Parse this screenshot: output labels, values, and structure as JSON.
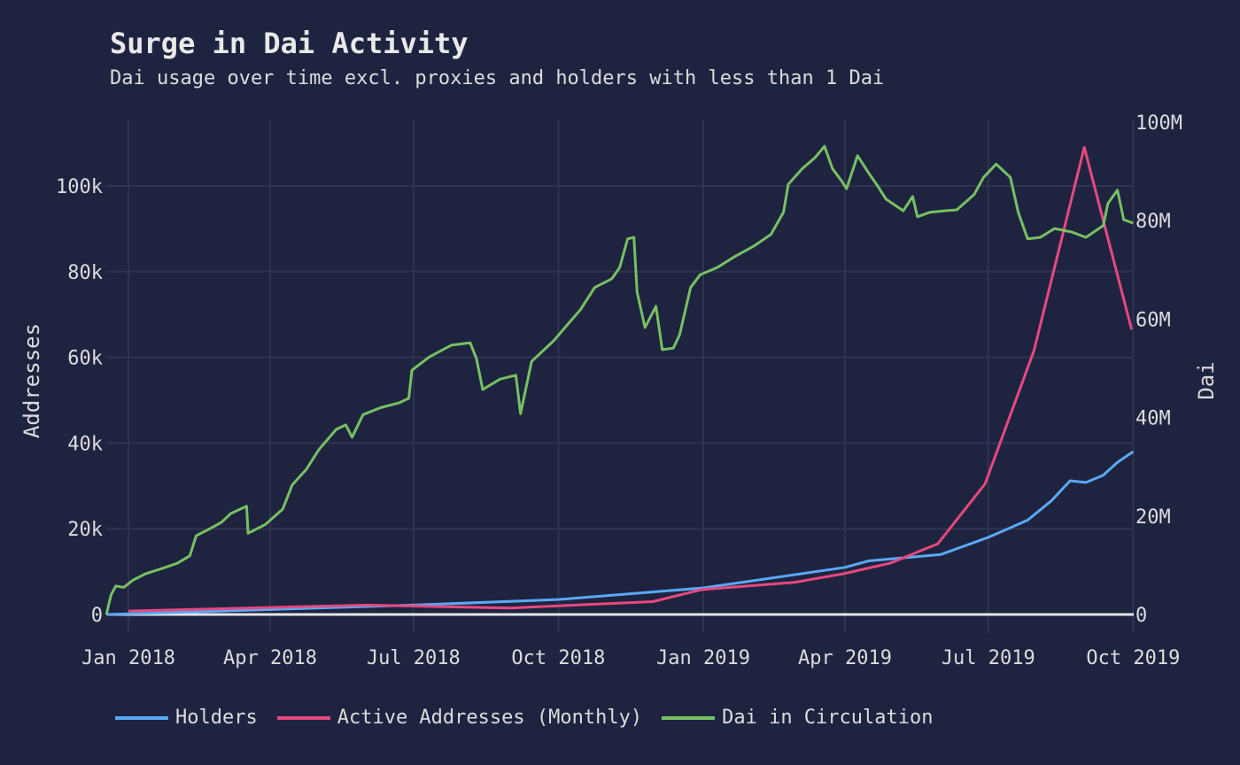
{
  "chart_data": {
    "type": "line",
    "title": "Surge in Dai Activity",
    "subtitle": "Dai usage over time excl. proxies and holders with less than 1 Dai",
    "ylabel": "Addresses",
    "y2label": "Dai",
    "ylim": [
      -5000,
      115000
    ],
    "y2lim": [
      -4.3,
      100
    ],
    "x_ticks": [
      {
        "date": "2018-01-01",
        "label": "Jan 2018"
      },
      {
        "date": "2018-04-01",
        "label": "Apr 2018"
      },
      {
        "date": "2018-07-01",
        "label": "Jul 2018"
      },
      {
        "date": "2018-10-01",
        "label": "Oct 2018"
      },
      {
        "date": "2019-01-01",
        "label": "Jan 2019"
      },
      {
        "date": "2019-04-01",
        "label": "Apr 2019"
      },
      {
        "date": "2019-07-01",
        "label": "Jul 2019"
      },
      {
        "date": "2019-10-01",
        "label": "Oct 2019"
      }
    ],
    "y_ticks": [
      {
        "v": 0,
        "label": "0"
      },
      {
        "v": 20000,
        "label": "20k"
      },
      {
        "v": 40000,
        "label": "40k"
      },
      {
        "v": 60000,
        "label": "60k"
      },
      {
        "v": 80000,
        "label": "80k"
      },
      {
        "v": 100000,
        "label": "100k"
      }
    ],
    "y2_ticks": [
      {
        "v": 0,
        "label": "0"
      },
      {
        "v": 20,
        "label": "20M"
      },
      {
        "v": 40,
        "label": "40M"
      },
      {
        "v": 60,
        "label": "60M"
      },
      {
        "v": 80,
        "label": "80M"
      },
      {
        "v": 100,
        "label": "100M"
      }
    ],
    "series": [
      {
        "name": "Holders",
        "axis": "left",
        "color": "#5aa9f5",
        "points": [
          [
            "2017-12-18",
            0
          ],
          [
            "2018-03-01",
            800
          ],
          [
            "2018-07-01",
            2200
          ],
          [
            "2018-10-01",
            3500
          ],
          [
            "2019-01-01",
            6200
          ],
          [
            "2019-04-01",
            11000
          ],
          [
            "2019-04-16",
            12500
          ],
          [
            "2019-06-01",
            14000
          ],
          [
            "2019-07-01",
            18000
          ],
          [
            "2019-07-26",
            22000
          ],
          [
            "2019-08-10",
            26500
          ],
          [
            "2019-08-22",
            31200
          ],
          [
            "2019-09-01",
            30800
          ],
          [
            "2019-09-12",
            32500
          ],
          [
            "2019-09-21",
            35500
          ],
          [
            "2019-10-01",
            38000
          ]
        ]
      },
      {
        "name": "Active Addresses (Monthly)",
        "axis": "left",
        "color": "#e8487e",
        "points": [
          [
            "2018-01-01",
            800
          ],
          [
            "2018-06-01",
            2200
          ],
          [
            "2018-08-31",
            1500
          ],
          [
            "2018-11-30",
            3000
          ],
          [
            "2018-12-31",
            5800
          ],
          [
            "2019-02-28",
            7500
          ],
          [
            "2019-03-31",
            9500
          ],
          [
            "2019-04-30",
            12000
          ],
          [
            "2019-05-30",
            16500
          ],
          [
            "2019-06-29",
            30500
          ],
          [
            "2019-07-30",
            61500
          ],
          [
            "2019-08-31",
            109000
          ],
          [
            "2019-09-30",
            66500
          ]
        ]
      },
      {
        "name": "Dai in Circulation",
        "axis": "right",
        "color": "#78c062",
        "points": [
          [
            "2017-12-18",
            0
          ],
          [
            "2017-12-21",
            4
          ],
          [
            "2017-12-24",
            5.8
          ],
          [
            "2017-12-29",
            5.5
          ],
          [
            "2018-01-04",
            7
          ],
          [
            "2018-01-12",
            8.3
          ],
          [
            "2018-01-21",
            9.2
          ],
          [
            "2018-02-01",
            10.4
          ],
          [
            "2018-02-09",
            11.9
          ],
          [
            "2018-02-13",
            16
          ],
          [
            "2018-02-21",
            17.3
          ],
          [
            "2018-03-01",
            18.7
          ],
          [
            "2018-03-07",
            20.5
          ],
          [
            "2018-03-17",
            22
          ],
          [
            "2018-03-18",
            16.5
          ],
          [
            "2018-03-29",
            18.3
          ],
          [
            "2018-04-09",
            21.4
          ],
          [
            "2018-04-15",
            26.3
          ],
          [
            "2018-04-24",
            29.5
          ],
          [
            "2018-05-02",
            33.5
          ],
          [
            "2018-05-13",
            37.6
          ],
          [
            "2018-05-19",
            38.5
          ],
          [
            "2018-05-23",
            36
          ],
          [
            "2018-05-30",
            40.6
          ],
          [
            "2018-06-10",
            42
          ],
          [
            "2018-06-22",
            43
          ],
          [
            "2018-06-28",
            43.9
          ],
          [
            "2018-06-30",
            49.6
          ],
          [
            "2018-07-11",
            52.3
          ],
          [
            "2018-07-25",
            54.7
          ],
          [
            "2018-08-06",
            55.2
          ],
          [
            "2018-08-10",
            52
          ],
          [
            "2018-08-14",
            45.7
          ],
          [
            "2018-08-25",
            47.8
          ],
          [
            "2018-09-04",
            48.6
          ],
          [
            "2018-09-07",
            40.8
          ],
          [
            "2018-09-14",
            51.4
          ],
          [
            "2018-09-28",
            55.6
          ],
          [
            "2018-10-09",
            59.7
          ],
          [
            "2018-10-15",
            61.9
          ],
          [
            "2018-10-24",
            66.4
          ],
          [
            "2018-11-04",
            68.2
          ],
          [
            "2018-11-09",
            70.5
          ],
          [
            "2018-11-14",
            76.3
          ],
          [
            "2018-11-18",
            76.6
          ],
          [
            "2018-11-20",
            65.5
          ],
          [
            "2018-11-25",
            58.3
          ],
          [
            "2018-12-02",
            62.6
          ],
          [
            "2018-12-06",
            53.8
          ],
          [
            "2018-12-13",
            54.1
          ],
          [
            "2018-12-17",
            56.8
          ],
          [
            "2018-12-24",
            66.4
          ],
          [
            "2018-12-30",
            69
          ],
          [
            "2019-01-10",
            70.5
          ],
          [
            "2019-01-21",
            72.7
          ],
          [
            "2019-02-02",
            74.8
          ],
          [
            "2019-02-13",
            77.2
          ],
          [
            "2019-02-21",
            81.7
          ],
          [
            "2019-02-24",
            87.4
          ],
          [
            "2019-03-05",
            90.6
          ],
          [
            "2019-03-13",
            92.8
          ],
          [
            "2019-03-19",
            95.1
          ],
          [
            "2019-03-24",
            90.6
          ],
          [
            "2019-03-30",
            88
          ],
          [
            "2019-04-02",
            86.5
          ],
          [
            "2019-04-09",
            93.2
          ],
          [
            "2019-04-16",
            89.7
          ],
          [
            "2019-04-21",
            87.4
          ],
          [
            "2019-04-27",
            84.4
          ],
          [
            "2019-05-08",
            82
          ],
          [
            "2019-05-14",
            84.9
          ],
          [
            "2019-05-17",
            80.8
          ],
          [
            "2019-05-25",
            81.7
          ],
          [
            "2019-06-03",
            82
          ],
          [
            "2019-06-11",
            82.2
          ],
          [
            "2019-06-22",
            85.3
          ],
          [
            "2019-06-28",
            88.8
          ],
          [
            "2019-07-06",
            91.5
          ],
          [
            "2019-07-15",
            88.8
          ],
          [
            "2019-07-20",
            81.7
          ],
          [
            "2019-07-26",
            76.3
          ],
          [
            "2019-08-03",
            76.6
          ],
          [
            "2019-08-12",
            78.4
          ],
          [
            "2019-08-23",
            77.7
          ],
          [
            "2019-09-01",
            76.6
          ],
          [
            "2019-09-12",
            79
          ],
          [
            "2019-09-15",
            83.5
          ],
          [
            "2019-09-21",
            86.2
          ],
          [
            "2019-09-25",
            80.2
          ],
          [
            "2019-10-01",
            79.5
          ]
        ]
      }
    ]
  }
}
